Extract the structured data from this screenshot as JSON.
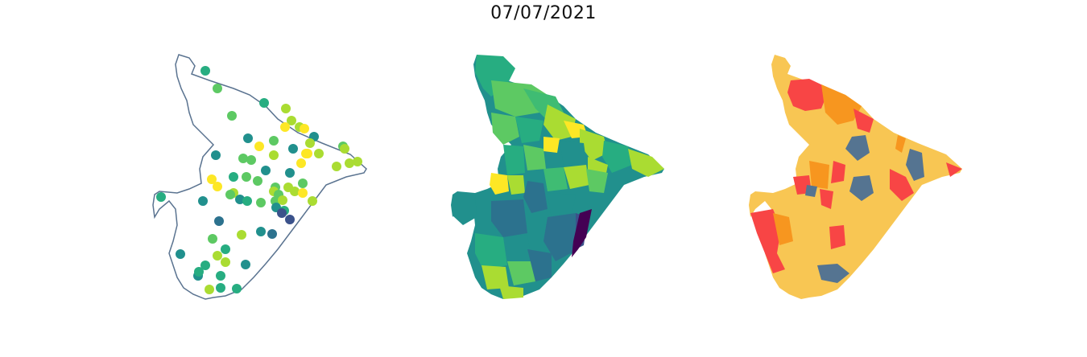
{
  "title": "07/07/2021",
  "colors": {
    "outline": "#5a7390",
    "viridis": [
      "#440154",
      "#3b528b",
      "#2c728e",
      "#21908d",
      "#27ad81",
      "#5dc963",
      "#aadc32",
      "#fde725"
    ],
    "categories": {
      "blue": "#557491",
      "yellow": "#f8c653",
      "orange": "#f7961f",
      "red": "#f84545"
    }
  },
  "maps": [
    {
      "name": "station-points-map"
    },
    {
      "name": "viridis-choropleth-map"
    },
    {
      "name": "categorical-choropleth-map"
    }
  ]
}
